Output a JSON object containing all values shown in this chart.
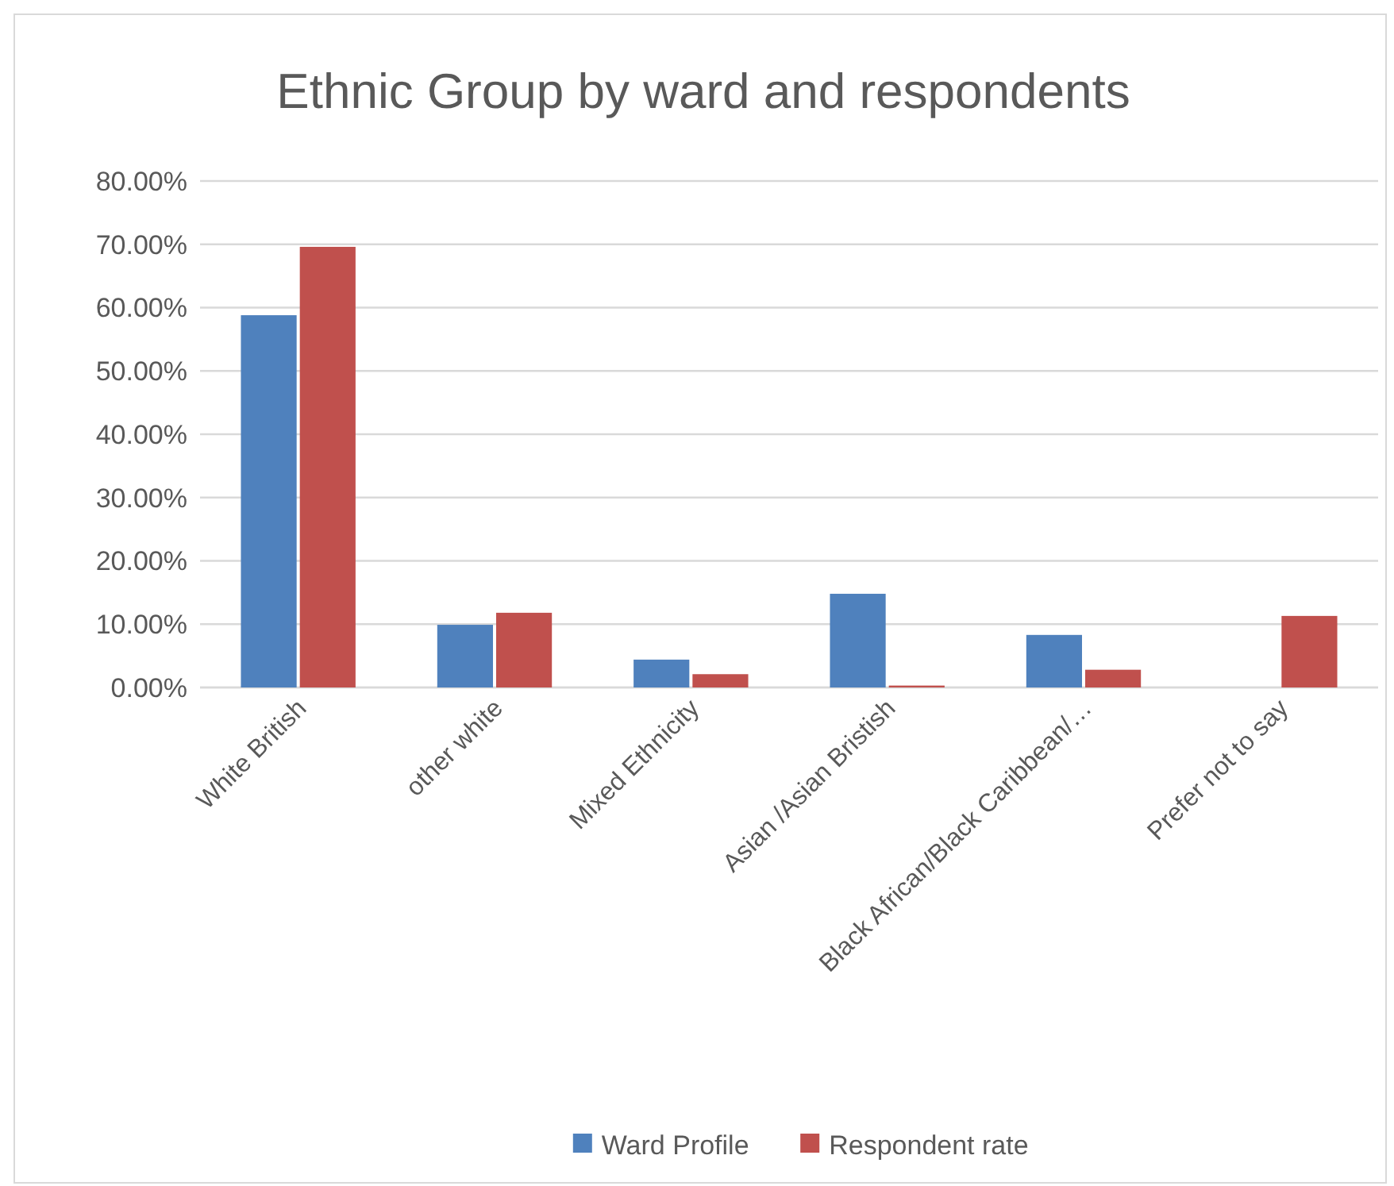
{
  "chart_data": {
    "type": "bar",
    "title": "Ethnic Group by ward and respondents",
    "categories": [
      "White British",
      "other white",
      "Mixed Ethnicity",
      "Asian /Asian Bristish",
      "Black African/Black Caribbean/…",
      "Prefer not to say"
    ],
    "series": [
      {
        "name": "Ward Profile",
        "color": "#4f81bd",
        "values": [
          58.8,
          9.9,
          4.4,
          14.8,
          8.3,
          0
        ]
      },
      {
        "name": "Respondent rate",
        "color": "#c0504d",
        "values": [
          69.6,
          11.8,
          2.1,
          0.3,
          2.8,
          11.3
        ]
      }
    ],
    "ylim": [
      0,
      80
    ],
    "yticks": [
      {
        "value": 0,
        "label": "0.00%"
      },
      {
        "value": 10,
        "label": "10.00%"
      },
      {
        "value": 20,
        "label": "20.00%"
      },
      {
        "value": 30,
        "label": "30.00%"
      },
      {
        "value": 40,
        "label": "40.00%"
      },
      {
        "value": 50,
        "label": "50.00%"
      },
      {
        "value": 60,
        "label": "60.00%"
      },
      {
        "value": 70,
        "label": "70.00%"
      },
      {
        "value": 80,
        "label": "80.00%"
      }
    ],
    "grid": "y",
    "legend": "bottom"
  }
}
